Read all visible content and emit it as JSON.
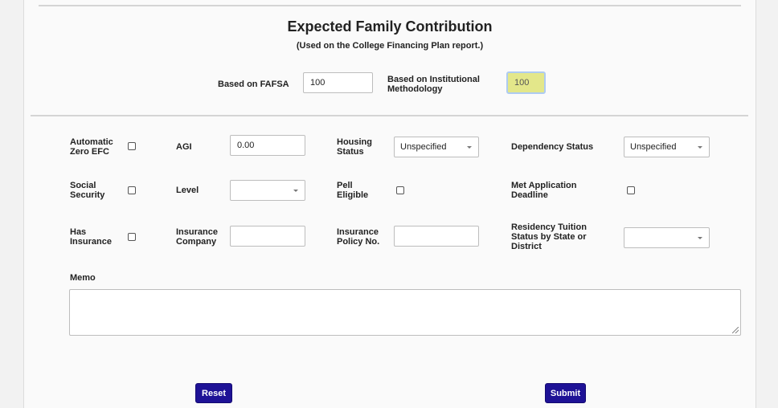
{
  "header": {
    "title": "Expected Family Contribution",
    "subtitle": "(Used on the College Financing Plan report.)"
  },
  "efc": {
    "fafsa_label": "Based on FAFSA",
    "fafsa_value": "100",
    "institutional_label_line1": "Based on Institutional",
    "institutional_label_line2": "Methodology",
    "institutional_value": "100"
  },
  "form": {
    "auto_zero_efc": {
      "line1": "Automatic",
      "line2": "Zero EFC",
      "checked": false
    },
    "agi": {
      "label": "AGI",
      "value": "0.00"
    },
    "housing_status": {
      "line1": "Housing",
      "line2": "Status",
      "value": "Unspecified"
    },
    "dependency_status": {
      "label": "Dependency Status",
      "value": "Unspecified"
    },
    "social_security": {
      "line1": "Social",
      "line2": "Security",
      "checked": false
    },
    "level": {
      "label": "Level",
      "value": ""
    },
    "pell_eligible": {
      "line1": "Pell",
      "line2": "Eligible",
      "checked": false
    },
    "met_app_deadline": {
      "line1": "Met Application",
      "line2": "Deadline",
      "checked": false
    },
    "has_insurance": {
      "line1": "Has",
      "line2": "Insurance",
      "checked": false
    },
    "insurance_company": {
      "line1": "Insurance",
      "line2": "Company",
      "value": ""
    },
    "insurance_policy": {
      "line1": "Insurance",
      "line2": "Policy No.",
      "value": ""
    },
    "residency_tuition": {
      "line1": "Residency Tuition",
      "line2": "Status by State or",
      "line3": "District",
      "value": ""
    },
    "memo": {
      "label": "Memo",
      "value": ""
    }
  },
  "actions": {
    "reset_label": "Reset",
    "submit_label": "Submit"
  }
}
